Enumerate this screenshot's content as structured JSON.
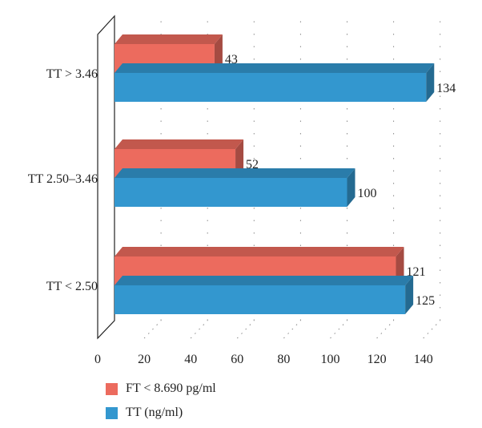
{
  "chart_data": {
    "type": "bar",
    "orientation": "horizontal",
    "style": "3d",
    "title": "",
    "xlabel": "",
    "ylabel": "",
    "categories": [
      "TT > 3.46",
      "TT 2.50–3.46",
      "TT < 2.50"
    ],
    "series": [
      {
        "name": "FT < 8.690 pg/ml",
        "color": "#ec6b5e",
        "values": [
          43,
          52,
          121
        ]
      },
      {
        "name": "TT (ng/ml)",
        "color": "#3397cf",
        "values": [
          134,
          100,
          125
        ]
      }
    ],
    "xlim": [
      0,
      140
    ],
    "xticks": [
      "0",
      "20",
      "40",
      "60",
      "80",
      "100",
      "120",
      "140"
    ],
    "grid": true,
    "legend_position": "bottom-left"
  }
}
